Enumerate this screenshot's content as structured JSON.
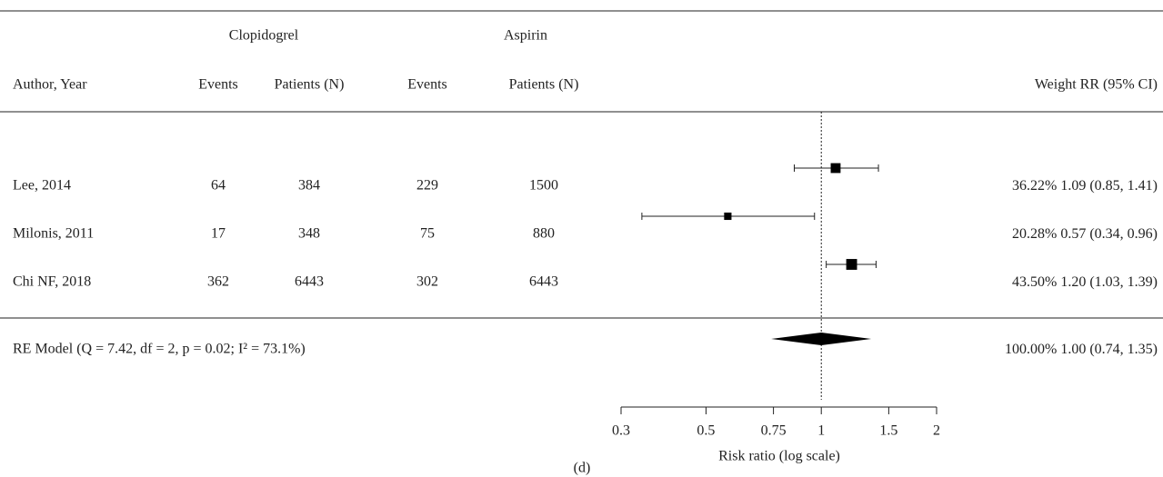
{
  "chart_data": {
    "type": "forest",
    "group_headers": [
      "Clopidogrel",
      "Aspirin"
    ],
    "column_headers": [
      "Author, Year",
      "Events",
      "Patients (N)",
      "Events",
      "Patients (N)",
      "Weight RR (95% CI)"
    ],
    "rows": [
      {
        "author": "Lee, 2014",
        "cells": [
          64,
          384,
          229,
          1500
        ],
        "weight": 36.22,
        "weight_label": "36.22%",
        "rr": 1.09,
        "lower": 0.85,
        "upper": 1.41,
        "ci_label": "1.09 (0.85, 1.41)"
      },
      {
        "author": "Milonis, 2011",
        "cells": [
          17,
          348,
          75,
          880
        ],
        "weight": 20.28,
        "weight_label": "20.28%",
        "rr": 0.57,
        "lower": 0.34,
        "upper": 0.96,
        "ci_label": "0.57 (0.34, 0.96)"
      },
      {
        "author": "Chi NF, 2018",
        "cells": [
          362,
          6443,
          302,
          6443
        ],
        "weight": 43.5,
        "weight_label": "43.50%",
        "rr": 1.2,
        "lower": 1.03,
        "upper": 1.39,
        "ci_label": "1.20 (1.03, 1.39)"
      }
    ],
    "summary": {
      "label": "RE Model (Q = 7.42, df = 2, p = 0.02; I² = 73.1%)",
      "weight": 100,
      "weight_label": "100.00%",
      "rr": 1,
      "lower": 0.74,
      "upper": 1.35,
      "ci_label": "1.00 (0.74, 1.35)"
    },
    "xlabel": "Risk ratio (log scale)",
    "caption": "(d)",
    "xlim": [
      0.3,
      2
    ],
    "xticks": [
      0.3,
      0.5,
      0.75,
      1,
      1.5,
      2
    ],
    "log_x": true,
    "reference": 1
  }
}
